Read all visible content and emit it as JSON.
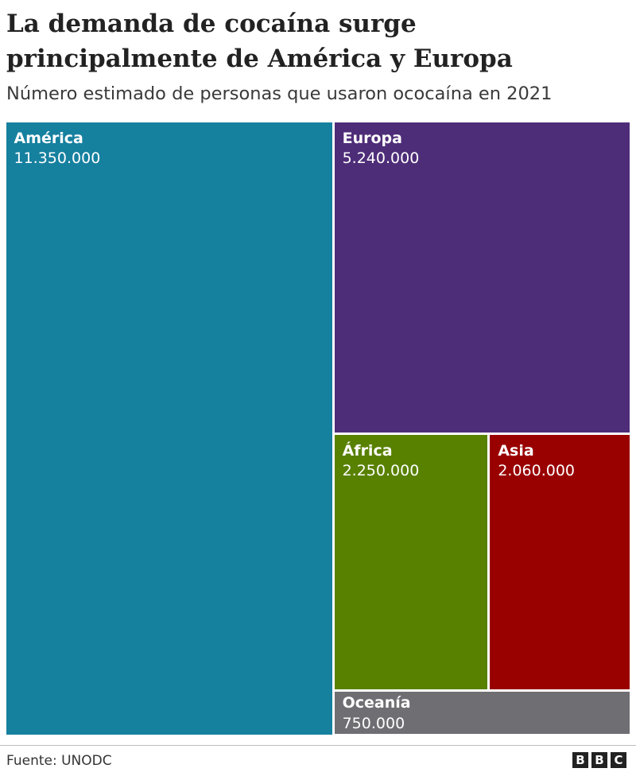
{
  "header": {
    "title": "La demanda de cocaína surge principalmente de América y Europa",
    "subtitle": "Número estimado de personas que usaron ococaína en 2021"
  },
  "footer": {
    "source": "Fuente: UNODC",
    "logo_letters": [
      "B",
      "B",
      "C"
    ]
  },
  "chart_data": {
    "type": "treemap",
    "title": "La demanda de cocaína surge principalmente de América y Europa",
    "subtitle": "Número estimado de personas que usaron ococaína en 2021",
    "items": [
      {
        "name": "América",
        "value": 11350000,
        "value_label": "11.350.000",
        "color": "#16809f"
      },
      {
        "name": "Europa",
        "value": 5240000,
        "value_label": "5.240.000",
        "color": "#4e2d78"
      },
      {
        "name": "África",
        "value": 2250000,
        "value_label": "2.250.000",
        "color": "#588100"
      },
      {
        "name": "Asia",
        "value": 2060000,
        "value_label": "2.060.000",
        "color": "#990000"
      },
      {
        "name": "Oceanía",
        "value": 750000,
        "value_label": "750.000",
        "color": "#6e6e73"
      }
    ]
  }
}
